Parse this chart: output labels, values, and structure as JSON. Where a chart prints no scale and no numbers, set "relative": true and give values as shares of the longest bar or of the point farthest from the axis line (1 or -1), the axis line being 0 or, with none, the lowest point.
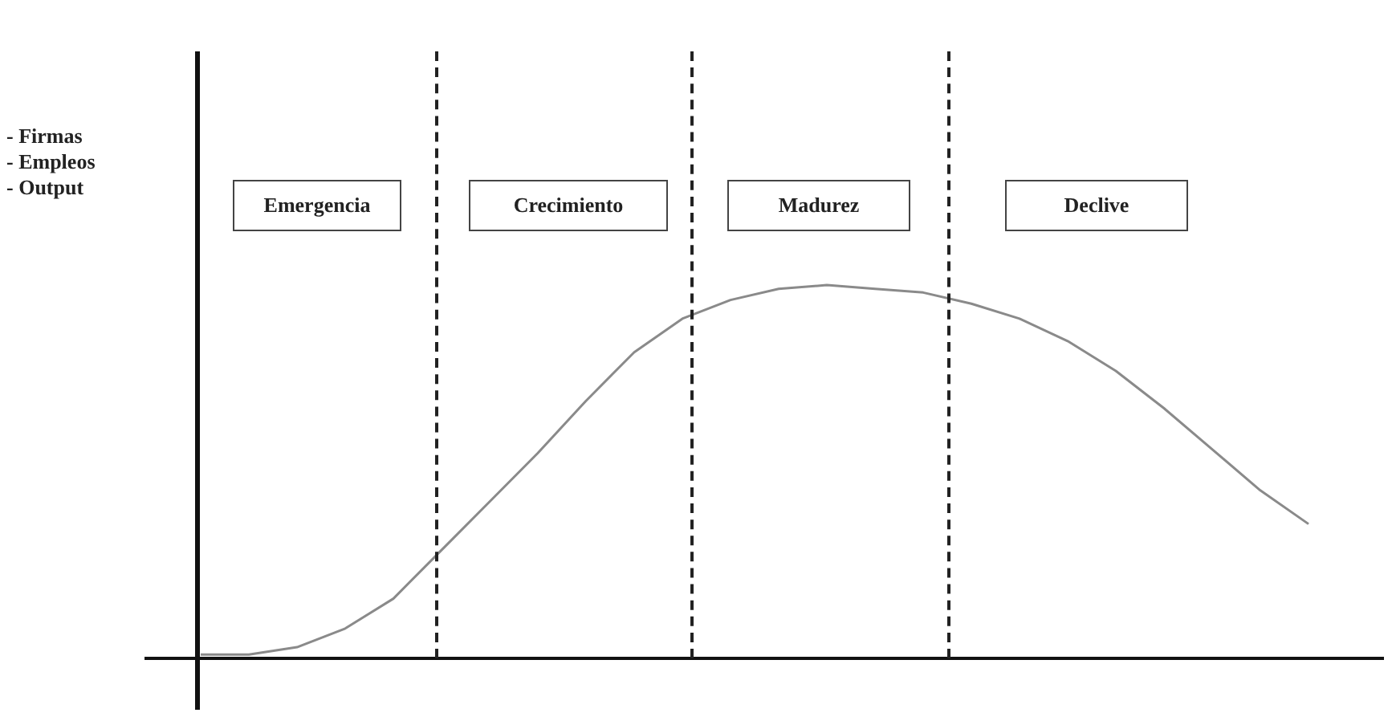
{
  "chart_data": {
    "type": "line",
    "relative": true,
    "marker": "none",
    "categories": [
      null,
      null,
      null,
      null,
      null,
      null,
      null,
      null,
      null,
      null,
      null,
      null,
      null,
      null,
      null,
      null,
      null,
      null,
      null,
      null,
      null,
      null,
      null,
      null
    ],
    "series": [
      {
        "color": "#8a8a8a",
        "values": [
          0.01,
          0.01,
          0.03,
          0.08,
          0.16,
          0.29,
          0.42,
          0.55,
          0.69,
          0.82,
          0.91,
          0.96,
          0.99,
          1,
          0.99,
          0.98,
          0.95,
          0.91,
          0.85,
          0.77,
          0.67,
          0.56,
          0.45,
          0.36
        ]
      }
    ],
    "annotations": [
      "- Firmas\n- Empleos\n- Output",
      "Emergencia",
      "Crecimiento",
      "Madurez",
      "Declive"
    ]
  }
}
